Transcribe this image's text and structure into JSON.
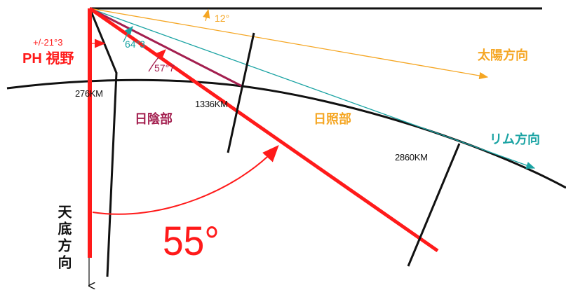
{
  "labels": {
    "fov_range": "+/-21°3",
    "fov_name": "PH 視野",
    "angle_sun": "12°",
    "angle_rim": "64°3",
    "angle_night": "57°7",
    "dist_276": "276KM",
    "dist_1336": "1336KM",
    "dist_2860": "2860KM",
    "night_side": "日陰部",
    "day_side": "日照部",
    "sun_direction": "太陽方向",
    "rim_direction": "リム方向",
    "nadir_direction": "天底方向",
    "main_angle": "55°"
  },
  "colors": {
    "red": "#ff1a1a",
    "orange": "#f5a623",
    "teal": "#1aa3a3",
    "maroon": "#a31f4f",
    "black": "#111111"
  }
}
